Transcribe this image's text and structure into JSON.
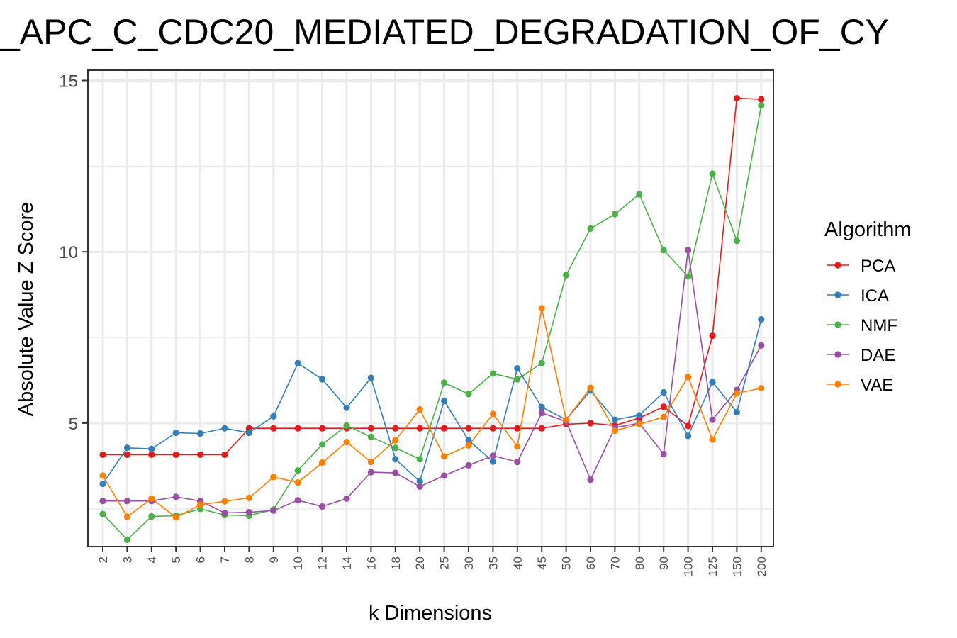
{
  "chart_data": {
    "type": "line",
    "title": "_APC_C_CDC20_MEDIATED_DEGRADATION_OF_CY",
    "xlabel": "k Dimensions",
    "ylabel": "Absolute Value Z Score",
    "categories": [
      "2",
      "3",
      "4",
      "5",
      "6",
      "7",
      "8",
      "9",
      "10",
      "12",
      "14",
      "16",
      "18",
      "20",
      "25",
      "30",
      "35",
      "40",
      "45",
      "50",
      "60",
      "70",
      "80",
      "90",
      "100",
      "125",
      "150",
      "200"
    ],
    "ylim": [
      1.4,
      15.3
    ],
    "yticks": [
      5,
      10,
      15
    ],
    "grid": true,
    "legend": {
      "title": "Algorithm",
      "position": "right"
    },
    "series": [
      {
        "name": "PCA",
        "color": "#E41A1C",
        "values": [
          4.08,
          4.08,
          4.08,
          4.08,
          4.08,
          4.08,
          4.85,
          4.85,
          4.85,
          4.85,
          4.85,
          4.85,
          4.85,
          4.85,
          4.85,
          4.85,
          4.85,
          4.85,
          4.85,
          4.97,
          5.0,
          4.93,
          5.15,
          5.48,
          4.92,
          7.55,
          14.48,
          14.45
        ]
      },
      {
        "name": "ICA",
        "color": "#377EB8",
        "values": [
          3.23,
          4.28,
          4.25,
          4.72,
          4.7,
          4.85,
          4.72,
          5.2,
          6.75,
          6.28,
          5.45,
          6.32,
          3.95,
          3.3,
          5.65,
          4.5,
          3.88,
          6.6,
          5.47,
          5.1,
          5.95,
          5.1,
          5.23,
          5.9,
          4.63,
          6.2,
          5.32,
          8.03
        ]
      },
      {
        "name": "NMF",
        "color": "#4DAF4A",
        "values": [
          2.35,
          1.6,
          2.28,
          2.3,
          2.5,
          2.32,
          2.3,
          2.48,
          3.62,
          4.38,
          4.93,
          4.6,
          4.28,
          3.95,
          6.18,
          5.85,
          6.45,
          6.28,
          6.75,
          9.32,
          10.68,
          11.1,
          11.68,
          10.05,
          9.28,
          12.28,
          10.32,
          14.27
        ]
      },
      {
        "name": "DAE",
        "color": "#984EA3",
        "values": [
          2.73,
          2.73,
          2.73,
          2.85,
          2.73,
          2.38,
          2.4,
          2.45,
          2.75,
          2.57,
          2.8,
          3.57,
          3.55,
          3.15,
          3.47,
          3.77,
          4.05,
          3.87,
          5.3,
          5.05,
          3.35,
          4.87,
          5.0,
          4.1,
          10.05,
          5.1,
          5.97,
          7.27
        ]
      },
      {
        "name": "VAE",
        "color": "#FF7F00",
        "values": [
          3.47,
          2.27,
          2.8,
          2.25,
          2.62,
          2.72,
          2.82,
          3.43,
          3.27,
          3.85,
          4.45,
          3.87,
          4.5,
          5.4,
          4.03,
          4.35,
          5.27,
          4.32,
          8.35,
          5.1,
          6.03,
          4.78,
          4.97,
          5.18,
          6.35,
          4.52,
          5.87,
          6.02
        ]
      }
    ]
  }
}
